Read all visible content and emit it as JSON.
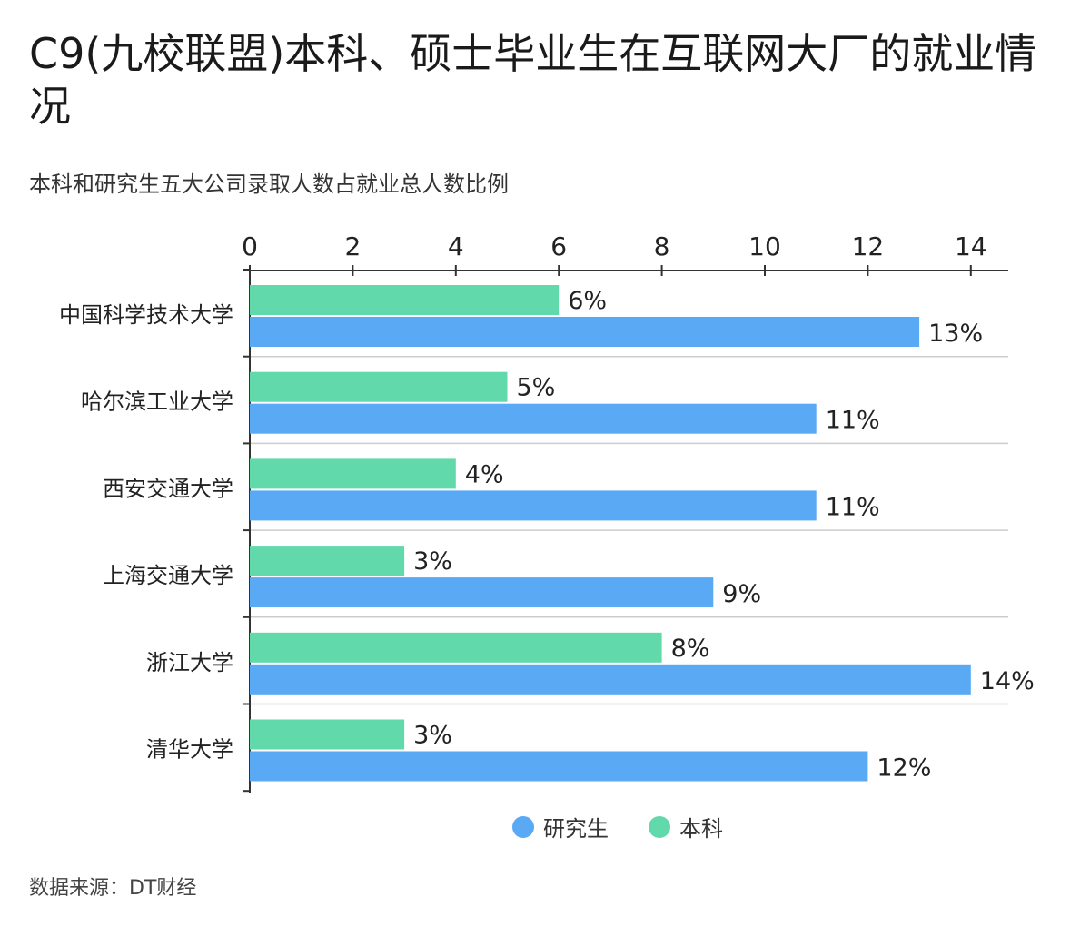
{
  "title": "C9(九校联盟)本科、硕士毕业生在互联网大厂的就业情况",
  "subtitle": "本科和研究生五大公司录取人数占就业总人数比例",
  "source": "数据来源：DT财经",
  "colors": {
    "graduate": "#5aa9f5",
    "undergrad": "#62d9ab",
    "grid": "#cccccc",
    "axis": "#333333"
  },
  "legend": [
    {
      "label": "研究生",
      "color": "#5aa9f5"
    },
    {
      "label": "本科",
      "color": "#62d9ab"
    }
  ],
  "chart_data": {
    "type": "bar",
    "orientation": "horizontal",
    "categories": [
      "中国科学技术大学",
      "哈尔滨工业大学",
      "西安交通大学",
      "上海交通大学",
      "浙江大学",
      "清华大学"
    ],
    "series": [
      {
        "name": "本科",
        "values": [
          6,
          5,
          4,
          3,
          8,
          3
        ],
        "labels": [
          "6%",
          "5%",
          "4%",
          "3%",
          "8%",
          "3%"
        ],
        "color": "#62d9ab"
      },
      {
        "name": "研究生",
        "values": [
          13,
          11,
          11,
          9,
          14,
          12
        ],
        "labels": [
          "13%",
          "11%",
          "11%",
          "9%",
          "14%",
          "12%"
        ],
        "color": "#5aa9f5"
      }
    ],
    "xlim": [
      0,
      14
    ],
    "xticks": [
      "0",
      "2",
      "4",
      "6",
      "8",
      "10",
      "12",
      "14"
    ],
    "xtick_values": [
      0,
      2,
      4,
      6,
      8,
      10,
      12,
      14
    ],
    "axis_position": "top",
    "grid": true,
    "legend_position": "bottom"
  }
}
